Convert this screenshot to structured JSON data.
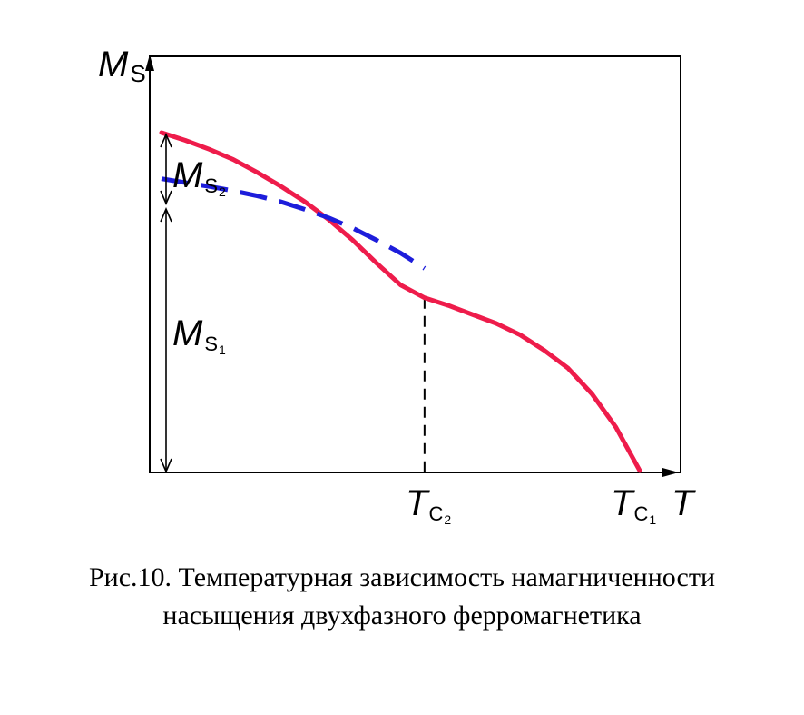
{
  "chart_data": {
    "type": "line",
    "ylabel": {
      "main": "M",
      "sub": "S"
    },
    "xlabel": "T",
    "x_ticks": [
      {
        "id": "tc2",
        "main": "T",
        "sub": "C",
        "subsub": "2",
        "x": 0.55
      },
      {
        "id": "tc1",
        "main": "T",
        "sub": "C",
        "subsub": "1",
        "x": 1.0
      }
    ],
    "annotations": [
      {
        "id": "ms2",
        "main": "M",
        "sub": "S",
        "subsub": "2"
      },
      {
        "id": "ms1",
        "main": "M",
        "sub": "S",
        "subsub": "1"
      }
    ],
    "series": [
      {
        "id": "total",
        "style": "solid",
        "color": "#ee1c4b",
        "x": [
          0,
          0.05,
          0.1,
          0.15,
          0.2,
          0.25,
          0.3,
          0.35,
          0.4,
          0.45,
          0.5,
          0.55,
          0.6,
          0.65,
          0.7,
          0.75,
          0.8,
          0.85,
          0.9,
          0.95,
          1.0
        ],
        "y": [
          0.82,
          0.79,
          0.755,
          0.715,
          0.665,
          0.61,
          0.55,
          0.48,
          0.4,
          0.31,
          0.225,
          0.175,
          0.145,
          0.11,
          0.075,
          0.03,
          -0.03,
          -0.1,
          -0.2,
          -0.33,
          -0.5
        ]
      },
      {
        "id": "phase1",
        "style": "dashed",
        "color": "#1d1ddb",
        "x": [
          0,
          0.05,
          0.1,
          0.15,
          0.2,
          0.25,
          0.3,
          0.35,
          0.4,
          0.45,
          0.5,
          0.55
        ],
        "y": [
          0.64,
          0.625,
          0.61,
          0.593,
          0.573,
          0.55,
          0.52,
          0.487,
          0.447,
          0.4,
          0.35,
          0.29
        ]
      }
    ],
    "xlim": [
      0,
      1.08
    ],
    "ylim": [
      -0.5,
      1.0
    ]
  },
  "caption": {
    "line1": "Рис.10. Температурная зависимость намагниченности",
    "line2": "насыщения двухфазного ферромагнетика"
  },
  "colors": {
    "total": "#ee1c4b",
    "phase1": "#1d1ddb",
    "axis": "#000000"
  }
}
